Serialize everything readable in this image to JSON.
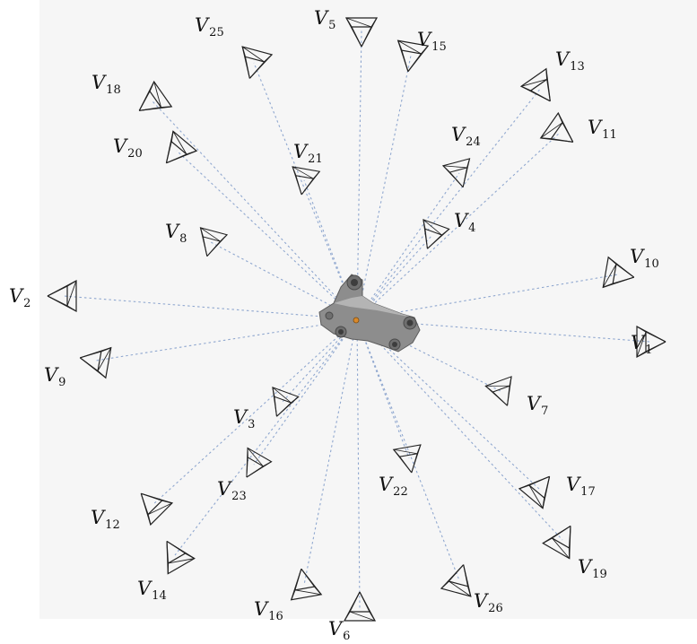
{
  "figure": {
    "views": [
      {
        "id": "V1",
        "letter": "V",
        "sub": "1"
      },
      {
        "id": "V2",
        "letter": "V",
        "sub": "2"
      },
      {
        "id": "V3",
        "letter": "V",
        "sub": "3"
      },
      {
        "id": "V4",
        "letter": "V",
        "sub": "4"
      },
      {
        "id": "V5",
        "letter": "V",
        "sub": "5"
      },
      {
        "id": "V6",
        "letter": "V",
        "sub": "6"
      },
      {
        "id": "V7",
        "letter": "V",
        "sub": "7"
      },
      {
        "id": "V8",
        "letter": "V",
        "sub": "8"
      },
      {
        "id": "V9",
        "letter": "V",
        "sub": "9"
      },
      {
        "id": "V10",
        "letter": "V",
        "sub": "10"
      },
      {
        "id": "V11",
        "letter": "V",
        "sub": "11"
      },
      {
        "id": "V12",
        "letter": "V",
        "sub": "12"
      },
      {
        "id": "V13",
        "letter": "V",
        "sub": "13"
      },
      {
        "id": "V14",
        "letter": "V",
        "sub": "14"
      },
      {
        "id": "V15",
        "letter": "V",
        "sub": "15"
      },
      {
        "id": "V16",
        "letter": "V",
        "sub": "16"
      },
      {
        "id": "V17",
        "letter": "V",
        "sub": "17"
      },
      {
        "id": "V18",
        "letter": "V",
        "sub": "18"
      },
      {
        "id": "V19",
        "letter": "V",
        "sub": "19"
      },
      {
        "id": "V20",
        "letter": "V",
        "sub": "20"
      },
      {
        "id": "V21",
        "letter": "V",
        "sub": "21"
      },
      {
        "id": "V22",
        "letter": "V",
        "sub": "22"
      },
      {
        "id": "V23",
        "letter": "V",
        "sub": "23"
      },
      {
        "id": "V24",
        "letter": "V",
        "sub": "24"
      },
      {
        "id": "V25",
        "letter": "V",
        "sub": "25"
      },
      {
        "id": "V26",
        "letter": "V",
        "sub": "26"
      }
    ],
    "colors": {
      "ray": "#8fa7cf",
      "camera": "#222222",
      "object": "#8a8a8a",
      "background": "#f6f6f6"
    }
  }
}
